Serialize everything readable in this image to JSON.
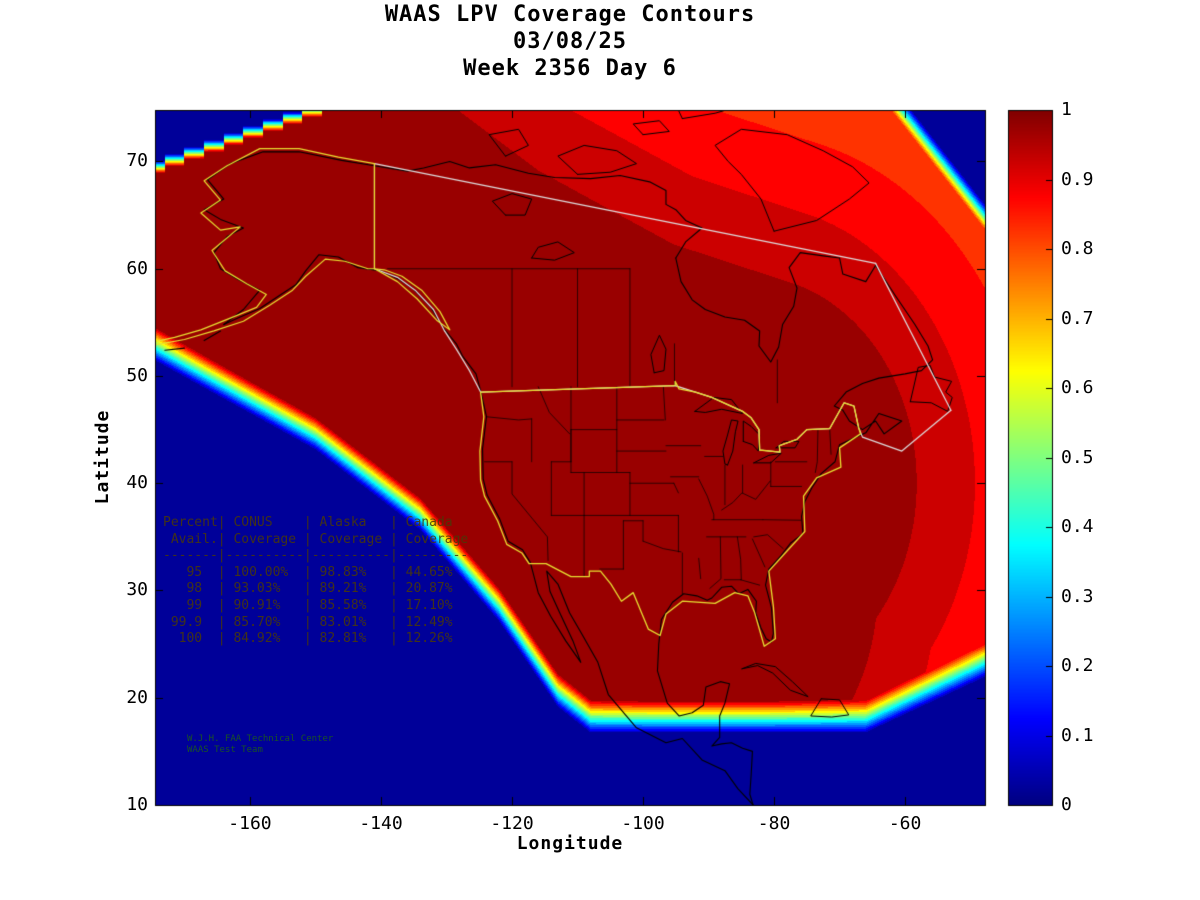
{
  "title": {
    "line1": "WAAS LPV Coverage Contours",
    "line2": "03/08/25",
    "line3": "Week 2356 Day 6"
  },
  "axes": {
    "xlabel": "Longitude",
    "ylabel": "Latitude",
    "x_tick_labels": [
      "-160",
      "-140",
      "-120",
      "-100",
      "-80",
      "-60"
    ],
    "x_tick_values": [
      -160,
      -140,
      -120,
      -100,
      -80,
      -60
    ],
    "y_tick_labels": [
      "10",
      "20",
      "30",
      "40",
      "50",
      "60",
      "70"
    ],
    "y_tick_values": [
      10,
      20,
      30,
      40,
      50,
      60,
      70
    ],
    "xlim": [
      -174.5,
      -47.8
    ],
    "ylim": [
      10,
      74.8
    ]
  },
  "colorbar": {
    "tick_labels": [
      "0",
      "0.1",
      "0.2",
      "0.3",
      "0.4",
      "0.5",
      "0.6",
      "0.7",
      "0.8",
      "0.9",
      "1"
    ],
    "tick_values": [
      0,
      0.1,
      0.2,
      0.3,
      0.4,
      0.5,
      0.6,
      0.7,
      0.8,
      0.9,
      1
    ],
    "min": 0,
    "max": 1,
    "colormap": "jet"
  },
  "coverage_table": {
    "header_row1": "Percent| CONUS    | Alaska   | Canada",
    "header_row2": " Avail.| Coverage | Coverage | Coverage",
    "separator": "-------|----------|----------|---------",
    "rows": [
      [
        "95",
        "100.00%",
        "98.83%",
        "44.65%"
      ],
      [
        "98",
        "93.03%",
        "89.21%",
        "20.87%"
      ],
      [
        "99",
        "90.91%",
        "85.58%",
        "17.10%"
      ],
      [
        "99.9",
        "85.70%",
        "83.01%",
        "12.49%"
      ],
      [
        "100",
        "84.92%",
        "82.81%",
        "12.26%"
      ]
    ]
  },
  "credit": {
    "line1": "W.J.H. FAA Technical Center",
    "line2": "WAAS Test Team"
  },
  "chart_data": {
    "type": "heatmap",
    "title": "WAAS LPV Coverage Contours",
    "subtitle": [
      "03/08/25",
      "Week 2356 Day 6"
    ],
    "xlabel": "Longitude",
    "ylabel": "Latitude",
    "xlim": [
      -174.5,
      -47.8
    ],
    "ylim": [
      10,
      74.8
    ],
    "value_range": [
      0,
      1
    ],
    "colormap": "jet",
    "colorbar_ticks": [
      0,
      0.1,
      0.2,
      0.3,
      0.4,
      0.5,
      0.6,
      0.7,
      0.8,
      0.9,
      1
    ],
    "contour_level_step": 0.05,
    "description": "LPV coverage fraction contours over North America: ~1.0 (dark red) over CONUS, Alaska and southern Canada, banded decrease toward the northeast (orange ~0.75-0.8), sharp rainbow fringe to 0 (dark blue ocean) along the Pacific southwest diagonal, the southern boundary near 17N, and the map corners.",
    "availability_table": {
      "columns": [
        "Percent Avail.",
        "CONUS Coverage",
        "Alaska Coverage",
        "Canada Coverage"
      ],
      "rows": [
        [
          95,
          100.0,
          98.83,
          44.65
        ],
        [
          98,
          93.03,
          89.21,
          20.87
        ],
        [
          99,
          90.91,
          85.58,
          17.1
        ],
        [
          99.9,
          85.7,
          83.01,
          12.49
        ],
        [
          100,
          84.92,
          82.81,
          12.26
        ]
      ]
    }
  }
}
